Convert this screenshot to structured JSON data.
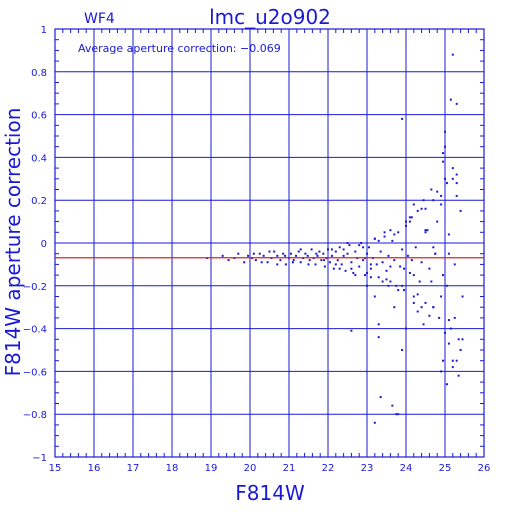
{
  "chart_data": {
    "type": "scatter",
    "title": "lmc_u2o902",
    "subtitle": "WF4",
    "annotation": "Average aperture correction: −0.069",
    "xlabel": "F814W",
    "ylabel": "F814W aperture correction",
    "xlim": [
      15,
      26
    ],
    "ylim": [
      -1,
      1
    ],
    "x_ticks": [
      "15",
      "16",
      "17",
      "18",
      "19",
      "20",
      "21",
      "22",
      "23",
      "24",
      "25",
      "26"
    ],
    "y_ticks": [
      "1",
      "0.8",
      "0.6",
      "0.4",
      "0.2",
      "0",
      "−0.2",
      "−0.4",
      "−0.6",
      "−0.8",
      "−1"
    ],
    "grid": true,
    "reference_line": {
      "y": -0.069,
      "color": "#e02020"
    },
    "zero_line": {
      "y": 0
    },
    "colors": {
      "axis": "#1a1ad6",
      "points": "#1a1ad6",
      "reference": "#e02020"
    },
    "points_x": [
      18.9,
      19.3,
      19.45,
      19.6,
      19.7,
      19.85,
      19.95,
      20.05,
      20.15,
      20.25,
      20.35,
      20.45,
      20.55,
      20.62,
      20.7,
      20.78,
      20.85,
      20.92,
      21.0,
      21.05,
      21.12,
      21.18,
      21.25,
      21.3,
      21.36,
      21.42,
      21.48,
      21.53,
      21.58,
      21.63,
      21.68,
      21.73,
      21.78,
      21.83,
      21.88,
      21.92,
      21.96,
      22.0,
      22.05,
      22.1,
      22.15,
      22.2,
      22.25,
      22.3,
      22.35,
      22.4,
      22.45,
      22.5,
      22.55,
      22.6,
      22.65,
      22.7,
      22.75,
      22.8,
      22.85,
      22.9,
      22.95,
      23.0,
      23.05,
      23.1,
      23.15,
      23.2,
      23.25,
      23.3,
      23.35,
      23.4,
      23.45,
      23.5,
      23.55,
      23.6,
      23.65,
      23.7,
      23.75,
      23.8,
      23.85,
      23.9,
      23.95,
      24.0,
      24.05,
      24.1,
      24.15,
      24.2,
      24.25,
      24.3,
      24.35,
      24.4,
      24.45,
      24.5,
      24.55,
      24.6,
      24.65,
      24.7,
      24.75,
      24.8,
      24.85,
      24.9,
      24.95,
      25.0,
      25.05,
      25.1,
      25.15,
      25.2,
      25.25,
      25.3,
      25.35,
      25.4,
      25.45,
      20.1,
      20.3,
      20.5,
      20.7,
      20.9,
      21.1,
      21.3,
      21.5,
      21.7,
      21.9,
      22.1,
      22.3,
      22.5,
      22.7,
      22.9,
      23.1,
      23.3,
      23.5,
      23.7,
      23.9,
      24.1,
      24.3,
      24.5,
      24.7,
      24.9,
      25.1,
      25.3,
      22.2,
      22.4,
      22.6,
      22.8,
      23.0,
      23.2,
      23.4,
      23.6,
      23.8,
      24.0,
      24.2,
      24.4,
      24.6,
      24.8,
      25.0,
      25.2,
      25.4,
      22.95,
      23.2,
      23.45,
      23.7,
      23.95,
      24.2,
      24.45,
      24.7,
      24.95,
      25.2,
      23.9,
      24.0,
      24.1,
      24.3,
      24.5,
      24.7,
      24.9,
      25.0,
      25.15,
      25.3,
      22.6,
      23.0,
      23.3,
      23.6,
      23.9,
      24.15,
      24.4,
      24.65,
      24.9,
      25.1,
      25.3,
      25.45,
      23.1,
      23.3,
      23.55,
      23.75,
      25.05,
      25.2,
      25.35,
      23.2,
      23.35,
      23.65,
      23.8,
      24.95,
      25.1,
      25.25,
      24.0,
      24.2,
      24.5,
      24.75,
      24.95,
      25.0,
      25.05,
      25.2,
      25.3
    ],
    "points_y": [
      -0.07,
      -0.06,
      -0.08,
      -0.07,
      -0.05,
      -0.09,
      -0.06,
      -0.07,
      -0.08,
      -0.05,
      -0.06,
      -0.09,
      -0.07,
      -0.04,
      -0.06,
      -0.08,
      -0.05,
      -0.1,
      -0.07,
      -0.05,
      -0.08,
      -0.06,
      -0.04,
      -0.09,
      -0.07,
      -0.05,
      -0.06,
      -0.08,
      -0.03,
      -0.07,
      -0.1,
      -0.06,
      -0.04,
      -0.08,
      -0.05,
      -0.11,
      -0.07,
      -0.03,
      -0.09,
      -0.06,
      -0.12,
      -0.04,
      -0.08,
      -0.02,
      -0.1,
      -0.06,
      -0.13,
      -0.05,
      -0.01,
      -0.09,
      -0.14,
      -0.04,
      -0.07,
      -0.11,
      0.0,
      -0.08,
      -0.15,
      -0.05,
      -0.02,
      -0.12,
      -0.07,
      0.02,
      -0.1,
      -0.16,
      -0.04,
      -0.09,
      0.03,
      -0.13,
      -0.06,
      -0.18,
      0.01,
      -0.08,
      -0.2,
      0.05,
      -0.11,
      -0.03,
      -0.22,
      0.08,
      -0.06,
      -0.14,
      0.12,
      -0.25,
      -0.02,
      0.15,
      -0.18,
      -0.09,
      0.2,
      -0.28,
      0.06,
      -0.12,
      0.25,
      -0.3,
      -0.05,
      0.1,
      -0.35,
      0.18,
      -0.15,
      0.3,
      -0.2,
      0.04,
      -0.4,
      0.35,
      -0.1,
      0.22,
      -0.45,
      0.15,
      -0.25,
      -0.05,
      -0.09,
      -0.04,
      -0.1,
      -0.06,
      -0.09,
      -0.03,
      -0.1,
      -0.05,
      -0.08,
      -0.03,
      -0.12,
      -0.0,
      -0.15,
      -0.02,
      -0.16,
      0.01,
      -0.17,
      0.04,
      -0.2,
      0.1,
      -0.24,
      0.16,
      -0.3,
      0.22,
      -0.36,
      0.28,
      -0.1,
      -0.03,
      -0.12,
      -0.01,
      -0.14,
      0.02,
      -0.18,
      0.06,
      -0.22,
      0.1,
      -0.28,
      0.16,
      -0.34,
      0.24,
      -0.42,
      0.3,
      -0.5,
      -0.07,
      -0.25,
      0.05,
      -0.3,
      -0.12,
      0.18,
      -0.38,
      -0.02,
      0.42,
      -0.55,
      0.58,
      -0.4,
      0.12,
      -0.32,
      0.05,
      0.2,
      -0.25,
      0.52,
      0.67,
      0.65,
      -0.41,
      -0.2,
      -0.44,
      -0.11,
      -0.5,
      -0.08,
      -0.3,
      -0.18,
      -0.6,
      -0.05,
      -0.55,
      -0.45,
      -0.1,
      -0.38,
      -0.2,
      -0.8,
      -0.66,
      -0.58,
      -0.62,
      -0.84,
      -0.72,
      -0.76,
      -0.8,
      -0.55,
      -0.47,
      -0.35,
      0.1,
      -0.15,
      0.06,
      -0.05,
      0.38,
      0.45,
      0.28,
      0.88,
      0.32
    ]
  }
}
